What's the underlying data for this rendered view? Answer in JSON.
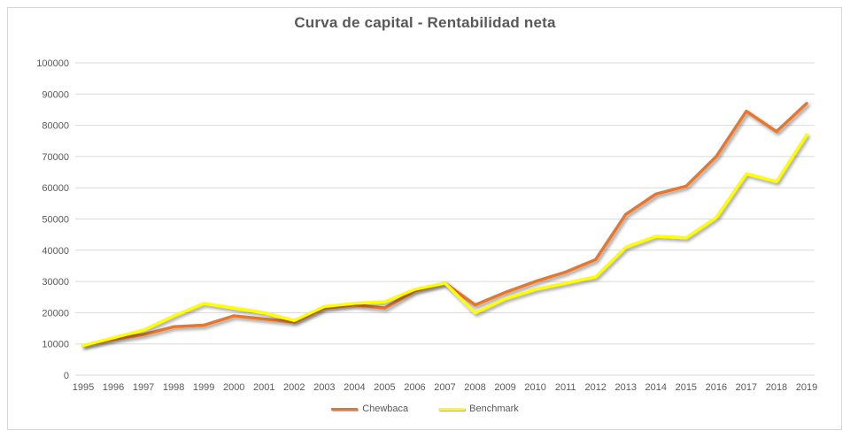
{
  "chart_data": {
    "type": "line",
    "title": "Curva de capital - Rentabilidad neta",
    "categories": [
      "1995",
      "1996",
      "1997",
      "1998",
      "1999",
      "2000",
      "2001",
      "2002",
      "2003",
      "2004",
      "2005",
      "2006",
      "2007",
      "2008",
      "2009",
      "2010",
      "2011",
      "2012",
      "2013",
      "2014",
      "2015",
      "2016",
      "2017",
      "2018",
      "2019"
    ],
    "series": [
      {
        "name": "Chewbaca",
        "color": "#e8772e",
        "values": [
          9500,
          11500,
          13000,
          15500,
          16000,
          19000,
          18000,
          17000,
          21500,
          22500,
          21500,
          27000,
          29500,
          22500,
          26500,
          30000,
          33000,
          37000,
          51500,
          58000,
          60500,
          70000,
          84500,
          78000,
          87000
        ]
      },
      {
        "name": "Benchmark",
        "color": "#ffff00",
        "values": [
          9500,
          12000,
          14500,
          19000,
          23000,
          21500,
          20000,
          17500,
          22000,
          23000,
          23500,
          27500,
          29500,
          20000,
          24500,
          27500,
          29500,
          31500,
          41000,
          44500,
          44000,
          50500,
          64500,
          62000,
          77000
        ]
      }
    ],
    "yticks": [
      "0",
      "10000",
      "20000",
      "30000",
      "40000",
      "50000",
      "60000",
      "70000",
      "80000",
      "90000",
      "100000"
    ],
    "ylim": [
      0,
      100000
    ],
    "ytick_step": 10000,
    "xlabel": "",
    "ylabel": "",
    "grid": true,
    "legend_position": "bottom",
    "colors": {
      "title_text": "#595959",
      "axis_text": "#595959",
      "gridline": "#d9d9d9",
      "background": "#ffffff",
      "frame_border": "#d6d6d6"
    }
  }
}
